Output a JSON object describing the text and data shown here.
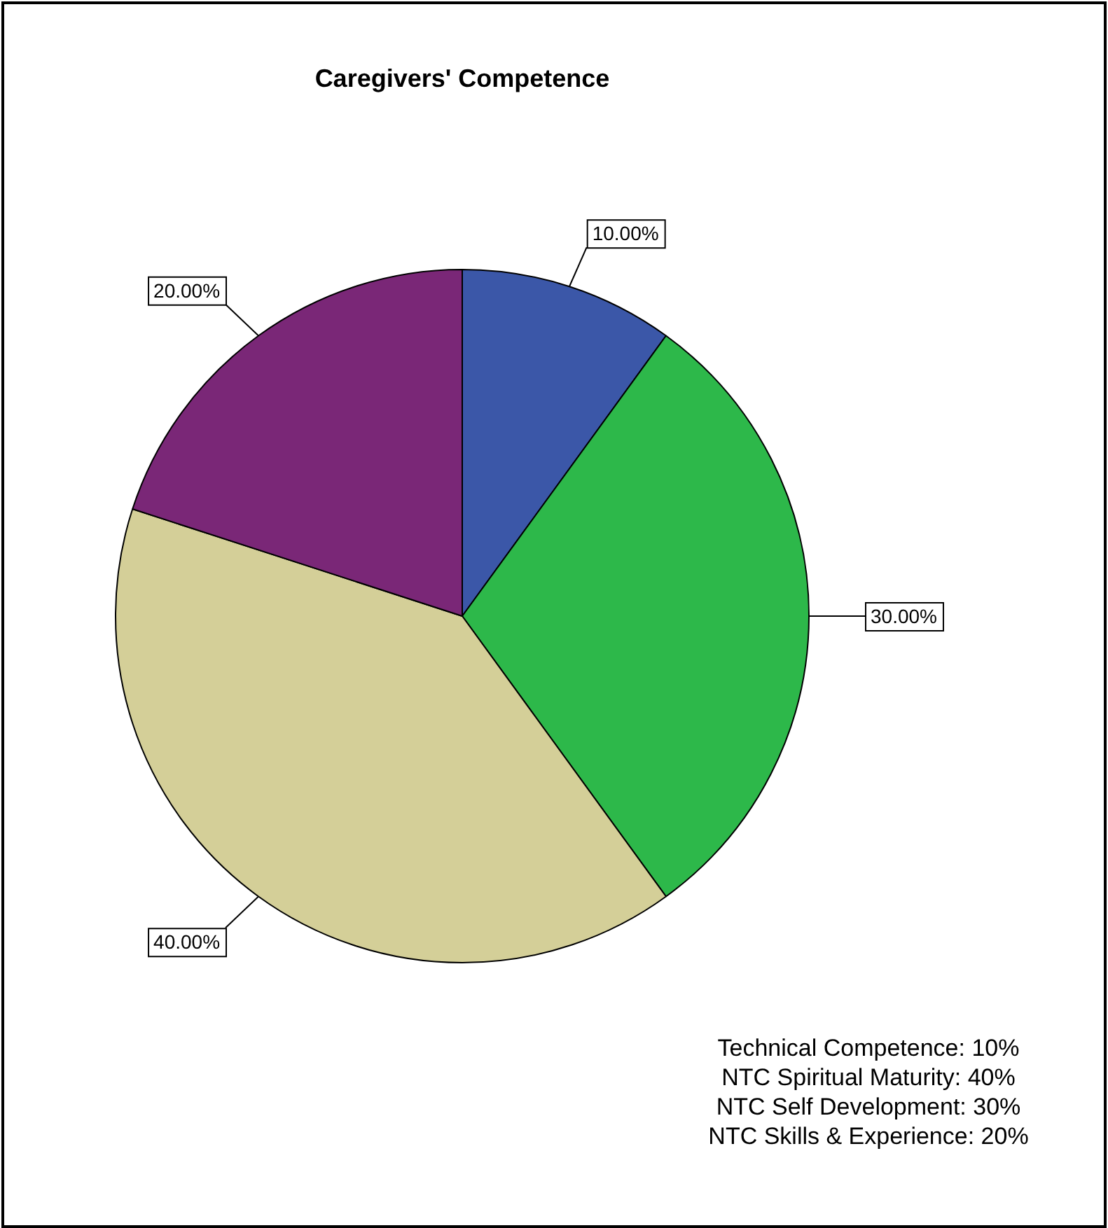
{
  "chart_data": {
    "type": "pie",
    "title": "Caregivers' Competence",
    "categories": [
      null,
      null,
      null,
      null
    ],
    "values": [
      10,
      30,
      40,
      20
    ],
    "colors": [
      "#3b57a8",
      "#2db84a",
      "#d4cf98",
      "#7a2777"
    ],
    "value_labels": [
      "10.00%",
      "30.00%",
      "40.00%",
      "20.00%"
    ],
    "legend": false,
    "annotations": [
      "Technical Competence: 10%",
      "NTC Spiritual Maturity: 40%",
      "NTC Self Development: 30%",
      "NTC Skills & Experience: 20%"
    ]
  }
}
